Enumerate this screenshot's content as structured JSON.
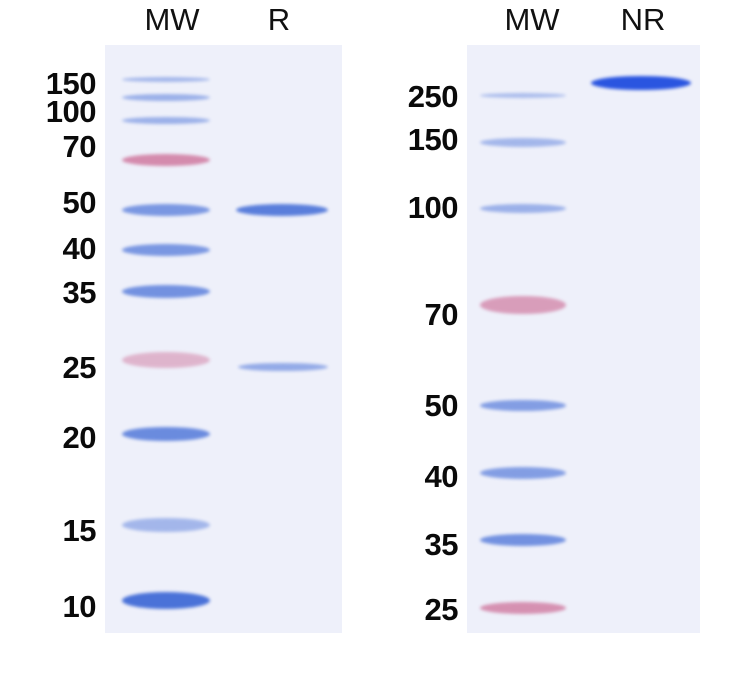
{
  "gels": [
    {
      "lanes": [
        "MW",
        "R"
      ],
      "markers": [
        "150",
        "100",
        "70",
        "50",
        "40",
        "35",
        "25",
        "20",
        "15",
        "10"
      ]
    },
    {
      "lanes": [
        "MW",
        "NR"
      ],
      "markers": [
        "250",
        "150",
        "100",
        "70",
        "50",
        "40",
        "35",
        "25"
      ]
    }
  ],
  "colors": {
    "blue_band": "#4a72d8",
    "pink_band": "#d07aa0",
    "strong_band": "#2a55e0",
    "gel_background": "#eef0fa"
  }
}
